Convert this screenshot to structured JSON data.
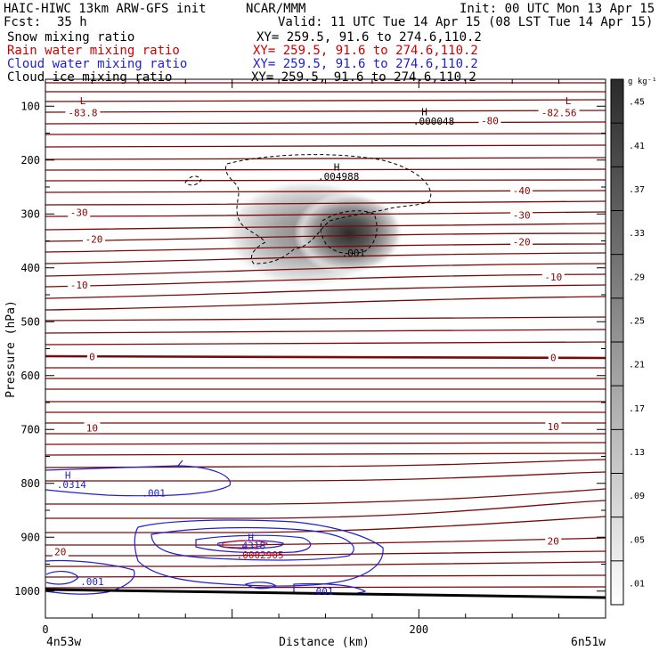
{
  "header": {
    "model": "HAIC-HIWC 13km ARW-GFS init",
    "org": "NCAR/MMM",
    "init": "Init: 00 UTC Mon 13 Apr 15",
    "fcst_label": "Fcst:",
    "fcst_value": "35 h",
    "valid": "Valid: 11 UTC Tue 14 Apr 15 (08 LST Tue 14 Apr 15)"
  },
  "fields": [
    {
      "name": "Snow mixing ratio",
      "xy": "XY= 259.5, 91.6 to 274.6,110.2",
      "color": "#000000"
    },
    {
      "name": "Rain water mixing ratio",
      "xy": "XY= 259.5, 91.6 to 274.6,110.2",
      "color": "#cc0000"
    },
    {
      "name": "Cloud water mixing ratio",
      "xy": "XY= 259.5, 91.6 to 274.6,110.2",
      "color": "#1f1fd0"
    },
    {
      "name": "Cloud ice mixing ratio",
      "xy": "XY= 259.5, 91.6 to 274.6,110.2",
      "color": "#000000"
    }
  ],
  "colorbar": {
    "unit": "g kg⁻¹",
    "ticks": [
      ".45",
      ".41",
      ".37",
      ".33",
      ".29",
      ".25",
      ".21",
      ".17",
      ".13",
      ".09",
      ".05",
      ".01"
    ]
  },
  "chart_data": {
    "type": "contour",
    "xlabel": "Distance (km)",
    "ylabel": "Pressure (hPa)",
    "xlim": [
      0,
      300
    ],
    "ylim": [
      1050,
      50
    ],
    "x_ticks": [
      0,
      200
    ],
    "y_ticks": [
      100,
      200,
      300,
      400,
      500,
      600,
      700,
      800,
      900,
      1000
    ],
    "x_end_labels": [
      "4n53w",
      "6n51w"
    ],
    "shading_field": "Snow mixing ratio",
    "shading_max_center": {
      "x_km": 165,
      "p_hpa": 340
    },
    "temperature_labels": [
      {
        "text": "-83.8",
        "x_km": 20,
        "p_hpa": 115
      },
      {
        "text": "-82.56",
        "x_km": 275,
        "p_hpa": 115
      },
      {
        "text": "-80",
        "x_km": 238,
        "p_hpa": 130
      },
      {
        "text": "-40",
        "x_km": 255,
        "p_hpa": 260
      },
      {
        "text": "-30",
        "x_km": 18,
        "p_hpa": 300
      },
      {
        "text": "-30",
        "x_km": 255,
        "p_hpa": 305
      },
      {
        "text": "-20",
        "x_km": 26,
        "p_hpa": 350
      },
      {
        "text": "-20",
        "x_km": 255,
        "p_hpa": 355
      },
      {
        "text": "-10",
        "x_km": 18,
        "p_hpa": 435
      },
      {
        "text": "-10",
        "x_km": 272,
        "p_hpa": 420
      },
      {
        "text": "0",
        "x_km": 25,
        "p_hpa": 568
      },
      {
        "text": "0",
        "x_km": 272,
        "p_hpa": 570
      },
      {
        "text": "10",
        "x_km": 25,
        "p_hpa": 700
      },
      {
        "text": "10",
        "x_km": 272,
        "p_hpa": 698
      },
      {
        "text": "20",
        "x_km": 8,
        "p_hpa": 930
      },
      {
        "text": "20",
        "x_km": 272,
        "p_hpa": 910
      }
    ],
    "extrema_labels": [
      {
        "text": "L",
        "x_km": 20,
        "p_hpa": 90,
        "color": "#8b0000"
      },
      {
        "text": "L",
        "x_km": 280,
        "p_hpa": 90,
        "color": "#8b0000"
      },
      {
        "text": "H",
        "x_km": 203,
        "p_hpa": 110,
        "color": "#000000"
      },
      {
        "text": ".000048",
        "x_km": 208,
        "p_hpa": 128,
        "color": "#000000"
      },
      {
        "text": "H",
        "x_km": 156,
        "p_hpa": 213,
        "color": "#000000"
      },
      {
        "text": ".004988",
        "x_km": 157,
        "p_hpa": 230,
        "color": "#000000"
      },
      {
        "text": ".001",
        "x_km": 165,
        "p_hpa": 372,
        "color": "#000000"
      },
      {
        "text": "H",
        "x_km": 12,
        "p_hpa": 785,
        "color": "#1f1fd0"
      },
      {
        "text": ".0314",
        "x_km": 14,
        "p_hpa": 802,
        "color": "#1f1fd0"
      },
      {
        "text": ".001",
        "x_km": 58,
        "p_hpa": 818,
        "color": "#1f1fd0"
      },
      {
        "text": "H",
        "x_km": 110,
        "p_hpa": 900,
        "color": "#1f1fd0"
      },
      {
        "text": ".4318",
        "x_km": 110,
        "p_hpa": 915,
        "color": "#1f1fd0"
      },
      {
        "text": ".0002905",
        "x_km": 115,
        "p_hpa": 933,
        "color": "#cc0000"
      },
      {
        "text": ".001",
        "x_km": 25,
        "p_hpa": 982,
        "color": "#1f1fd0"
      },
      {
        "text": ".001",
        "x_km": 148,
        "p_hpa": 1000,
        "color": "#1f1fd0"
      }
    ]
  }
}
